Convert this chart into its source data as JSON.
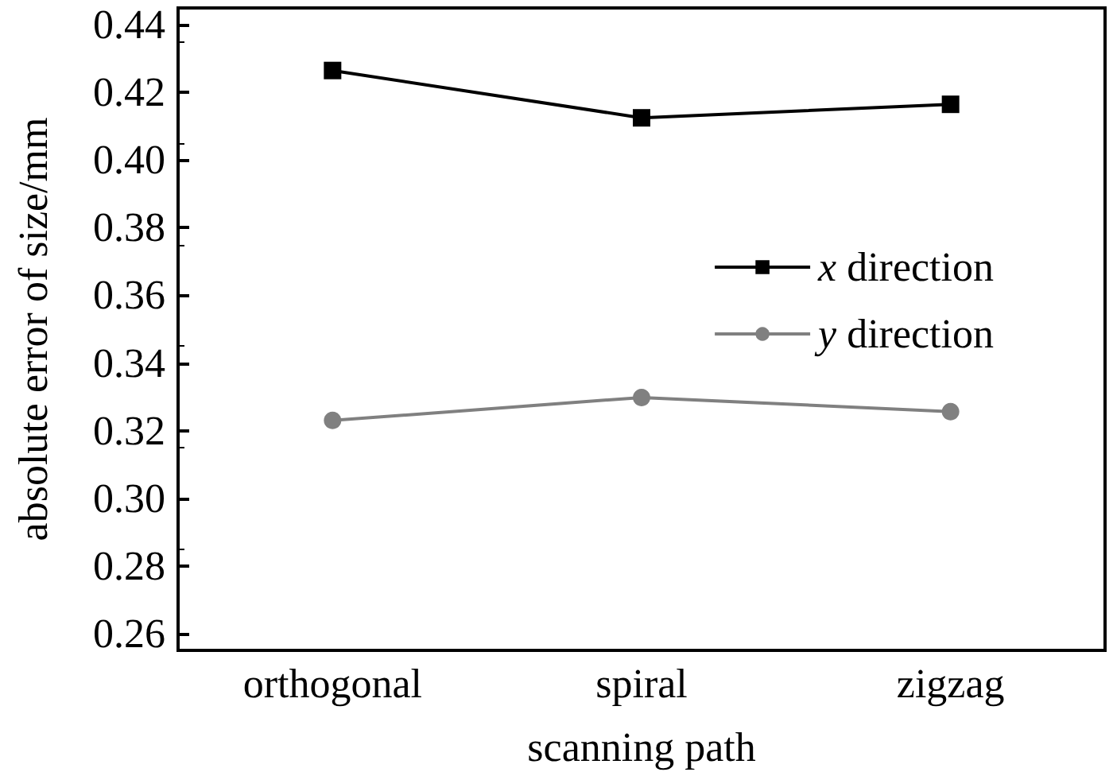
{
  "chart_data": {
    "type": "line",
    "xlabel": "scanning path",
    "ylabel": "absolute error of size/mm",
    "categories": [
      "orthogonal",
      "spiral",
      "zigzag"
    ],
    "series": [
      {
        "name": "x direction",
        "color": "#000000",
        "marker": "square",
        "values": [
          0.4265,
          0.4125,
          0.4165
        ]
      },
      {
        "name": "y direction",
        "color": "#808080",
        "marker": "circle",
        "values": [
          0.323,
          0.3298,
          0.3256
        ]
      }
    ],
    "ylim": [
      0.255,
      0.445
    ],
    "yticks": [
      0.26,
      0.28,
      {
        "value": 0.3,
        "label": "0.30"
      },
      0.32,
      0.34,
      0.36,
      0.38,
      {
        "value": 0.4,
        "label": "0.40"
      },
      0.42,
      0.44
    ],
    "grid": false,
    "legend": "right",
    "line_style": "solid"
  }
}
